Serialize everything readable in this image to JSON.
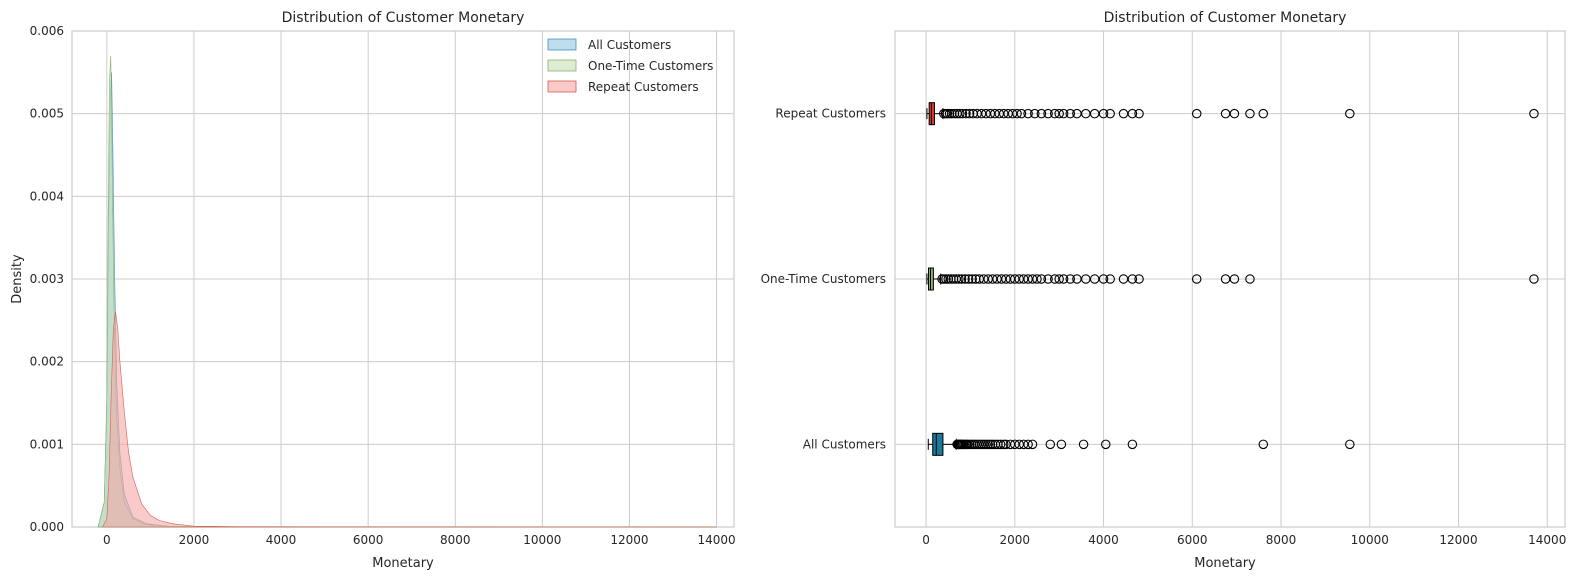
{
  "chart_data": [
    {
      "type": "area",
      "title": "Distribution of Customer Monetary",
      "xlabel": "Monetary",
      "ylabel": "Density",
      "xlim": [
        -800,
        14400
      ],
      "ylim": [
        0,
        0.006
      ],
      "xticks": [
        0,
        2000,
        4000,
        6000,
        8000,
        10000,
        12000,
        14000
      ],
      "yticks": [
        0.0,
        0.001,
        0.002,
        0.003,
        0.004,
        0.005,
        0.006
      ],
      "ytick_labels": [
        "0.000",
        "0.001",
        "0.002",
        "0.003",
        "0.004",
        "0.005",
        "0.006"
      ],
      "grid": true,
      "legend": "top-right",
      "series": [
        {
          "name": "All Customers",
          "color": "#92c5de",
          "edge": "#4393c3",
          "x": [
            -200,
            -60,
            0,
            40,
            80,
            110,
            140,
            180,
            230,
            300,
            400,
            600,
            900,
            1400,
            2500,
            14000
          ],
          "y": [
            0,
            0.0003,
            0.0015,
            0.0036,
            0.0052,
            0.0055,
            0.0045,
            0.003,
            0.0017,
            0.0009,
            0.0004,
            0.00012,
            4e-05,
            1e-05,
            3e-06,
            0
          ]
        },
        {
          "name": "One-Time Customers",
          "color": "#c7e0b4",
          "edge": "#8cb369",
          "x": [
            -200,
            -60,
            0,
            30,
            60,
            90,
            110,
            130,
            170,
            220,
            300,
            400,
            600,
            900,
            1400,
            2500,
            14000
          ],
          "y": [
            0,
            0.0003,
            0.0016,
            0.0038,
            0.0054,
            0.0057,
            0.005,
            0.004,
            0.0025,
            0.0014,
            0.0007,
            0.0003,
            0.0001,
            3e-05,
            1e-05,
            2e-06,
            0
          ]
        },
        {
          "name": "Repeat Customers",
          "color": "#f4a6a6",
          "edge": "#d6604d",
          "x": [
            -100,
            0,
            50,
            100,
            150,
            200,
            250,
            300,
            400,
            500,
            600,
            800,
            1000,
            1200,
            1500,
            2000,
            3000,
            5000,
            10000,
            14000
          ],
          "y": [
            0,
            0.0001,
            0.0006,
            0.0016,
            0.0024,
            0.0026,
            0.0024,
            0.002,
            0.0014,
            0.0009,
            0.0006,
            0.00028,
            0.00014,
            8e-05,
            4e-05,
            1e-05,
            4e-06,
            2e-06,
            1e-06,
            0
          ]
        }
      ]
    },
    {
      "type": "box",
      "title": "Distribution of Customer Monetary",
      "xlabel": "Monetary",
      "xlim": [
        -700,
        14400
      ],
      "xticks": [
        0,
        2000,
        4000,
        6000,
        8000,
        10000,
        12000,
        14000
      ],
      "grid": true,
      "categories": [
        "All Customers",
        "One-Time Customers",
        "Repeat Customers"
      ],
      "boxes": [
        {
          "label": "All Customers",
          "color": "#1a7a9e",
          "whisker_low": 50,
          "q1": 150,
          "median": 230,
          "q3": 380,
          "whisker_high": 680,
          "fliers": [
            700,
            720,
            740,
            760,
            780,
            800,
            820,
            850,
            880,
            910,
            940,
            980,
            1020,
            1060,
            1100,
            1150,
            1200,
            1250,
            1300,
            1350,
            1400,
            1450,
            1500,
            1560,
            1620,
            1680,
            1750,
            1800,
            1900,
            2000,
            2100,
            2200,
            2300,
            2400,
            2800,
            3050,
            3550,
            4050,
            4650,
            7600,
            9550
          ]
        },
        {
          "label": "One-Time Customers",
          "color": "#8db36a",
          "whisker_low": 20,
          "q1": 55,
          "median": 100,
          "q3": 165,
          "whisker_high": 330,
          "fliers": [
            360,
            400,
            450,
            500,
            560,
            620,
            680,
            740,
            800,
            880,
            960,
            1040,
            1120,
            1200,
            1300,
            1400,
            1500,
            1600,
            1700,
            1800,
            1900,
            2000,
            2100,
            2200,
            2300,
            2400,
            2500,
            2600,
            2750,
            2900,
            3000,
            3100,
            3250,
            3400,
            3600,
            3800,
            4000,
            4150,
            4450,
            4650,
            4800,
            6100,
            6750,
            6950,
            7300,
            13700
          ]
        },
        {
          "label": "Repeat Customers",
          "color": "#d63a2a",
          "whisker_low": 20,
          "q1": 70,
          "median": 120,
          "q3": 190,
          "whisker_high": 380,
          "fliers": [
            400,
            440,
            480,
            530,
            580,
            640,
            700,
            760,
            820,
            900,
            980,
            1060,
            1150,
            1250,
            1350,
            1450,
            1550,
            1650,
            1750,
            1850,
            1950,
            2050,
            2150,
            2300,
            2450,
            2600,
            2750,
            2900,
            3000,
            3100,
            3250,
            3400,
            3600,
            3800,
            4000,
            4150,
            4450,
            4650,
            4800,
            6100,
            6750,
            6950,
            7300,
            7600,
            9550,
            13700
          ]
        }
      ]
    }
  ]
}
